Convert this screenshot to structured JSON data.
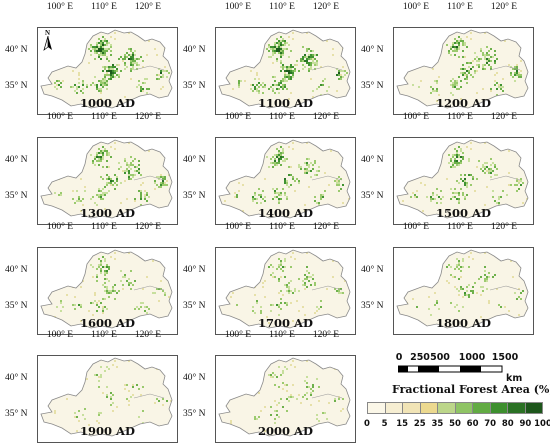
{
  "axis": {
    "lon_ticks": [
      "100° E",
      "110° E",
      "120° E"
    ],
    "lat_ticks": [
      "40° N",
      "35° N"
    ]
  },
  "north_arrow": {
    "label": "N"
  },
  "panels": [
    {
      "label": "1000 AD",
      "density": 1.0
    },
    {
      "label": "1100 AD",
      "density": 0.95
    },
    {
      "label": "1200 AD",
      "density": 0.85
    },
    {
      "label": "1300 AD",
      "density": 0.8
    },
    {
      "label": "1400 AD",
      "density": 0.72
    },
    {
      "label": "1500 AD",
      "density": 0.68
    },
    {
      "label": "1600 AD",
      "density": 0.5
    },
    {
      "label": "1700 AD",
      "density": 0.42
    },
    {
      "label": "1800 AD",
      "density": 0.36
    },
    {
      "label": "1900 AD",
      "density": 0.22
    },
    {
      "label": "2000 AD",
      "density": 0.3
    }
  ],
  "scale_bar": {
    "labels": [
      "0",
      "250",
      "500",
      "1000",
      "1500"
    ],
    "unit": "km"
  },
  "legend": {
    "title": "Fractional Forest Area (%)",
    "ticks": [
      "0",
      "5",
      "15",
      "25",
      "35",
      "50",
      "60",
      "70",
      "80",
      "90",
      "100"
    ],
    "colors": [
      "#fbf7e8",
      "#f6eed2",
      "#f1e4b6",
      "#ecd98f",
      "#bcd68a",
      "#8fc465",
      "#62ab43",
      "#3d8f2e",
      "#2a7124",
      "#1d561b"
    ]
  }
}
